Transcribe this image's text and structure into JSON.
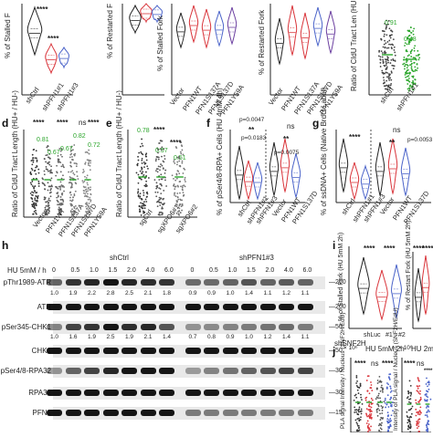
{
  "panels": {
    "a": {
      "sig": [
        "****",
        "****"
      ],
      "ylabel": "% of Stalled F",
      "xlabels": [
        "shCtrl",
        "shPFN1#1",
        "shPFN1#3"
      ]
    },
    "b": {
      "ylabel": "% of Restarted F"
    },
    "c1": {
      "ylabel": "% of Stalled Fork",
      "xlabels": [
        "Vector",
        "PFN1WT",
        "PFN1S137A",
        "PFN1S137D",
        "PFN1Y59A"
      ]
    },
    "c2": {
      "ylabel": "% of Restarted Fork",
      "xlabels": [
        "Vector",
        "PFN1WT",
        "PFN1S137A",
        "PFN1S137D",
        "PFN1Y59A"
      ]
    },
    "c3": {
      "ylabel": "Ratio of CldU Tract Len (HU+ / HU-)",
      "green": [
        "0.91",
        "0.48"
      ],
      "xlabels": [
        "shCtrl",
        "shPFN1#1"
      ]
    },
    "d": {
      "label": "d",
      "ylabel": "Ratio of CldU Tract Length (HU+ / HU-)",
      "sig": [
        "****",
        "****",
        "ns",
        "****"
      ],
      "green": [
        "0.81",
        "0.67",
        "0.67",
        "0.82",
        "0.72"
      ],
      "xlabels": [
        "Vector",
        "PFN1WT",
        "PFN1S137A",
        "PFN1S137D",
        "PFN1Y59A"
      ]
    },
    "e": {
      "label": "e",
      "ylabel": "Ratio of CldU Tract Length (HU+ / HU-)",
      "sig": [
        "****",
        "****"
      ],
      "green": [
        "0.78",
        "0.57",
        "0.51"
      ],
      "xlabels": [
        "sgCtrl",
        "sgXPO6#1",
        "sgXPO6#2"
      ]
    },
    "f": {
      "label": "f",
      "ylabel": "% of pSer4/8-RPA+ Cells (HU 4mM 4h)",
      "pvals": [
        "p=0.0047",
        "p=0.0183",
        "p=0.0075"
      ],
      "sig": [
        "**",
        "ns",
        "**"
      ],
      "xlabels": [
        "shCtrl",
        "shPFN1#1",
        "shPFN1#3",
        "Vector",
        "PFN1WT",
        "PFN1S137D"
      ]
    },
    "g": {
      "label": "g",
      "ylabel": "% of ssDNA+ Cells (Native BrdU Label)",
      "sig": [
        "****",
        "ns",
        "**"
      ],
      "pval": "p=0.0053",
      "xlabels": [
        "shCtrl",
        "shPFN1#1",
        "shPFN1#3",
        "Vector",
        "PFN1WT",
        "PFN1S137D"
      ]
    },
    "h": {
      "label": "h",
      "groups": [
        "shCtrl",
        "shPFN1#3"
      ],
      "treatment": "HU 5mM / h",
      "timepoints": [
        "0",
        "0.5",
        "1.0",
        "1.5",
        "2.0",
        "4.0",
        "6.0",
        "0",
        "0.5",
        "1.0",
        "1.5",
        "2.0",
        "4.0",
        "6.0"
      ],
      "rows": [
        {
          "label": "pThr1989-ATR",
          "mw": "260"
        },
        {
          "label": "ATR",
          "mw": "260"
        },
        {
          "label": "pSer345-CHK1",
          "mw": "50"
        },
        {
          "label": "CHK1",
          "mw": "50"
        },
        {
          "label": "pSer4/8-RPA32",
          "mw": "30"
        },
        {
          "label": "RPA32",
          "mw": "30"
        },
        {
          "label": "PFN1",
          "mw": "15"
        }
      ],
      "quant_atr": [
        "1.0",
        "1.9",
        "2.2",
        "2.8",
        "2.5",
        "2.1",
        "1.8",
        "0.9",
        "0.9",
        "1.0",
        "1.4",
        "1.1",
        "1.2",
        "1.1"
      ],
      "quant_chk1": [
        "1.0",
        "1.6",
        "1.9",
        "2.5",
        "1.9",
        "2.1",
        "1.4",
        "0.7",
        "0.8",
        "0.9",
        "1.0",
        "1.2",
        "1.4",
        "1.1"
      ]
    },
    "i": {
      "label": "i",
      "ylabel1": "% of Stalled Fork (HU 5mM 2h)",
      "ylabel2": "% of Restart Fork (HU 5mM 2h)",
      "sig1": [
        "****",
        "****"
      ],
      "sig2": [
        "****",
        "****"
      ],
      "group": "shSNF2H",
      "xlabels": [
        "shLuc",
        "#1",
        "#2"
      ]
    },
    "j": {
      "label": "j",
      "title1": "HU 5mM 2h",
      "title2": "HU 2mM 2h",
      "sig1": [
        "****",
        "ns",
        "****"
      ],
      "sig2": [
        "****",
        "ns",
        "****"
      ],
      "ylabel1": "PLA signal Intensity / Nucleus (SNF2H/EdU)",
      "ylabel2": "Intensity of PLA signal / Nucleus (SNF2H/EdU)",
      "exp": "× 10⁶"
    }
  },
  "colors": {
    "ctrl": "#222222",
    "red": "#d9343a",
    "blue": "#4a63c9",
    "purple": "#6b3fa0",
    "green": "#2aa52a"
  }
}
